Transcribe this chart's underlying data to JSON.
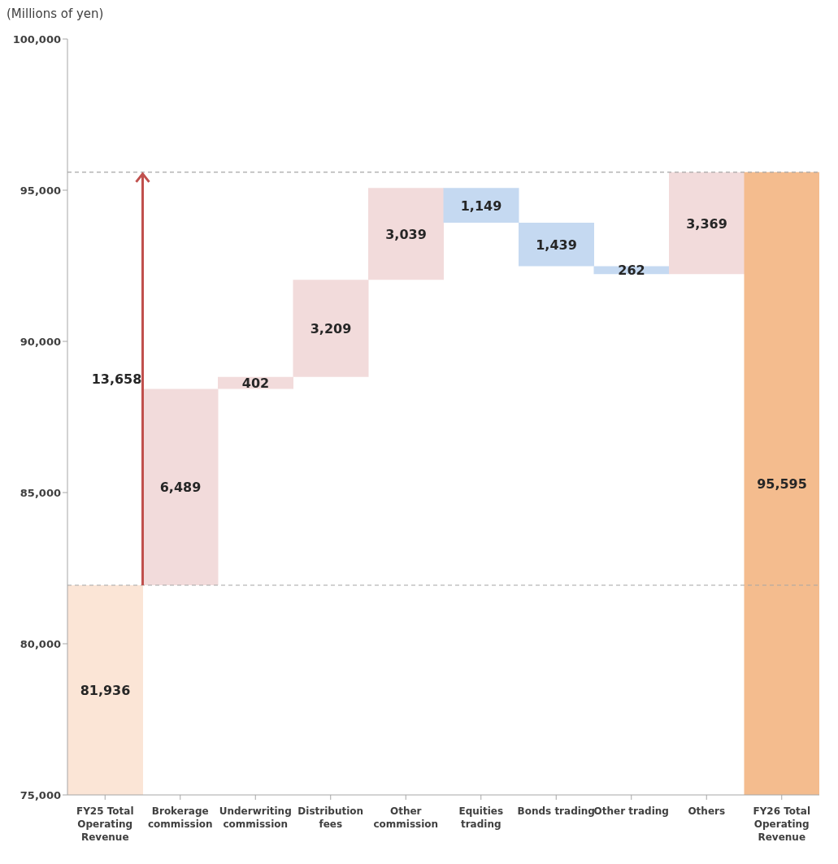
{
  "chart_data": {
    "type": "bar",
    "ylabel": "(Millions of yen)",
    "categories": [
      "FY25 Total Operating Revenue",
      "Brokerage commission",
      "Underwriting commission",
      "Distribution fees",
      "Other commission",
      "Equities trading",
      "Bonds trading",
      "Other trading",
      "Others",
      "FY26 Total Operating Revenue"
    ],
    "values": [
      81936,
      6489,
      402,
      3209,
      3039,
      -1149,
      -1439,
      -262,
      3369,
      95595
    ],
    "base": [
      0,
      81936,
      88425,
      88827,
      92036,
      95075,
      93926,
      92487,
      92225,
      0
    ],
    "colors": [
      "#fbe5d6",
      "#f2dbdb",
      "#f2dbdb",
      "#f2dbdb",
      "#f2dbdb",
      "#c5d9f1",
      "#c5d9f1",
      "#c5d9f1",
      "#f2dbdb",
      "#f4bc8e"
    ],
    "value_labels": [
      "81,936",
      "6,489",
      "402",
      "3,209",
      "3,039",
      "1,149",
      "1,439",
      "262",
      "3,369",
      "95,595"
    ],
    "ylim": [
      75000,
      100000
    ],
    "yticks": [
      {
        "value": 75000,
        "label": "75,000"
      },
      {
        "value": 80000,
        "label": "80,000"
      },
      {
        "value": 85000,
        "label": "85,000"
      },
      {
        "value": 90000,
        "label": "90,000"
      },
      {
        "value": 95000,
        "label": "95,000"
      },
      {
        "value": 100000,
        "label": "100,000"
      }
    ],
    "ref_lines": [
      {
        "axis": "y",
        "value": 81936,
        "label": null,
        "color": "#a6a6a6",
        "line_style": "dashed"
      },
      {
        "axis": "y",
        "value": 95595,
        "label": null,
        "color": "#a6a6a6",
        "line_style": "dashed"
      }
    ],
    "annotations": [
      "13,658"
    ],
    "grid": false
  }
}
